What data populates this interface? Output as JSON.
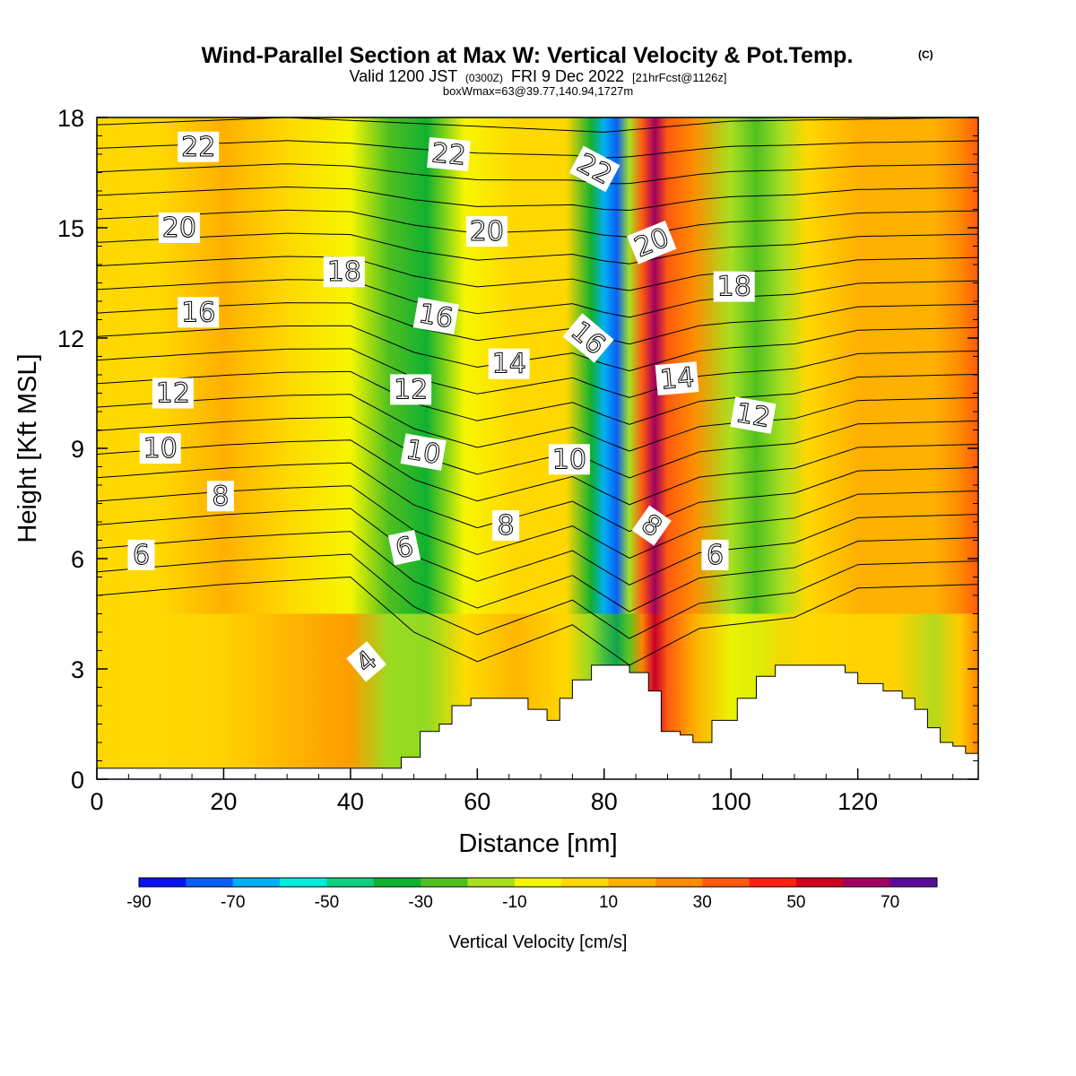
{
  "title": {
    "main": "Wind-Parallel Section at Max W: Vertical Velocity & Pot.Temp.",
    "main_mark": "(C)",
    "valid_prefix": "Valid 1200 JST",
    "valid_utc": "(0300Z)",
    "valid_date": "FRI 9 Dec 2022",
    "valid_fcst": "[21hrFcst@1126z]",
    "box_info": "boxWmax=63@39.77,140.94,1727m"
  },
  "chart_data": {
    "type": "heatmap",
    "xlabel": "Distance [nm]",
    "ylabel": "Height [Kft MSL]",
    "xlim": [
      0,
      139
    ],
    "ylim": [
      0,
      18
    ],
    "x_ticks": [
      0,
      20,
      40,
      60,
      80,
      100,
      120
    ],
    "y_ticks": [
      0,
      3,
      6,
      9,
      12,
      15,
      18
    ],
    "colorbar": {
      "label": "Vertical Velocity [cm/s]",
      "boundaries": [
        -90,
        -80,
        -70,
        -60,
        -50,
        -40,
        -30,
        -20,
        -10,
        0,
        10,
        20,
        30,
        40,
        50,
        60,
        70,
        80
      ],
      "tick_labels": [
        "-90",
        "-70",
        "-50",
        "-30",
        "-10",
        "10",
        "30",
        "50",
        "70"
      ],
      "colors": [
        "#0a12f0",
        "#0a60f6",
        "#00b0f4",
        "#00eee0",
        "#10d080",
        "#10b030",
        "#50c020",
        "#a8e020",
        "#f6f600",
        "#ffd800",
        "#ffb000",
        "#ff8c00",
        "#ff5a10",
        "#ff2010",
        "#d00020",
        "#a00060",
        "#5a0a9a"
      ]
    },
    "w_field": [
      {
        "x": 0,
        "w": 5,
        "w_low": 5
      },
      {
        "x": 10,
        "w": 8,
        "w_low": 3
      },
      {
        "x": 20,
        "w": 12,
        "w_low": 9
      },
      {
        "x": 30,
        "w": 5,
        "w_low": 12
      },
      {
        "x": 40,
        "w": -2,
        "w_low": 25
      },
      {
        "x": 46,
        "w": -22,
        "w_low": -12
      },
      {
        "x": 52,
        "w": -32,
        "w_low": -14
      },
      {
        "x": 58,
        "w": -8,
        "w_low": 4
      },
      {
        "x": 66,
        "w": 5,
        "w_low": 10
      },
      {
        "x": 74,
        "w": 4,
        "w_low": 8
      },
      {
        "x": 78,
        "w": -35,
        "w_low": -15
      },
      {
        "x": 80,
        "w": -62,
        "w_low": -25
      },
      {
        "x": 82,
        "w": -75,
        "w_low": -35
      },
      {
        "x": 84,
        "w": -20,
        "w_low": -30
      },
      {
        "x": 86,
        "w": 35,
        "w_low": 20
      },
      {
        "x": 88,
        "w": 63,
        "w_low": 55
      },
      {
        "x": 90,
        "w": 38,
        "w_low": 30
      },
      {
        "x": 94,
        "w": 22,
        "w_low": 14
      },
      {
        "x": 100,
        "w": -12,
        "w_low": -5
      },
      {
        "x": 104,
        "w": -30,
        "w_low": -8
      },
      {
        "x": 108,
        "w": -18,
        "w_low": 5
      },
      {
        "x": 112,
        "w": 6,
        "w_low": 8
      },
      {
        "x": 120,
        "w": 10,
        "w_low": 6
      },
      {
        "x": 126,
        "w": 18,
        "w_low": 5
      },
      {
        "x": 132,
        "w": 10,
        "w_low": -12
      },
      {
        "x": 136,
        "w": 20,
        "w_low": 8
      },
      {
        "x": 139,
        "w": 35,
        "w_low": 20
      }
    ],
    "theta_contours": {
      "interval": 1,
      "levels_range": [
        3,
        23
      ],
      "base_profile": [
        {
          "x": 0,
          "y": 5.0
        },
        {
          "x": 20,
          "y": 5.3
        },
        {
          "x": 40,
          "y": 5.5
        },
        {
          "x": 50,
          "y": 4.0
        },
        {
          "x": 60,
          "y": 3.2
        },
        {
          "x": 75,
          "y": 4.2
        },
        {
          "x": 84,
          "y": 3.1
        },
        {
          "x": 95,
          "y": 4.1
        },
        {
          "x": 110,
          "y": 4.4
        },
        {
          "x": 120,
          "y": 5.2
        },
        {
          "x": 139,
          "y": 5.3
        }
      ],
      "top_profile": [
        {
          "x": 0,
          "y": 17.8
        },
        {
          "x": 30,
          "y": 18.0
        },
        {
          "x": 55,
          "y": 17.8
        },
        {
          "x": 80,
          "y": 17.6
        },
        {
          "x": 100,
          "y": 17.9
        },
        {
          "x": 139,
          "y": 18.0
        }
      ]
    },
    "contour_labels": [
      {
        "text": "22",
        "x": 16,
        "y": 17.2,
        "angle": 0
      },
      {
        "text": "22",
        "x": 55.5,
        "y": 17.0,
        "angle": 5
      },
      {
        "text": "22",
        "x": 78.5,
        "y": 16.6,
        "angle": 28
      },
      {
        "text": "20",
        "x": 13,
        "y": 15.0,
        "angle": 0
      },
      {
        "text": "20",
        "x": 61.5,
        "y": 14.9,
        "angle": 0
      },
      {
        "text": "20",
        "x": 87.5,
        "y": 14.6,
        "angle": -22
      },
      {
        "text": "18",
        "x": 39,
        "y": 13.8,
        "angle": 0
      },
      {
        "text": "18",
        "x": 100.5,
        "y": 13.4,
        "angle": 0
      },
      {
        "text": "16",
        "x": 16,
        "y": 12.7,
        "angle": 0
      },
      {
        "text": "16",
        "x": 53.5,
        "y": 12.6,
        "angle": 10
      },
      {
        "text": "16",
        "x": 77.5,
        "y": 12.0,
        "angle": 40
      },
      {
        "text": "14",
        "x": 65,
        "y": 11.3,
        "angle": 0
      },
      {
        "text": "14",
        "x": 91.5,
        "y": 10.9,
        "angle": -5
      },
      {
        "text": "12",
        "x": 12,
        "y": 10.5,
        "angle": 0
      },
      {
        "text": "12",
        "x": 49.5,
        "y": 10.6,
        "angle": 0
      },
      {
        "text": "12",
        "x": 103.5,
        "y": 9.9,
        "angle": 10
      },
      {
        "text": "10",
        "x": 10,
        "y": 9.0,
        "angle": 0
      },
      {
        "text": "10",
        "x": 51.5,
        "y": 8.9,
        "angle": 10
      },
      {
        "text": "10",
        "x": 74.5,
        "y": 8.7,
        "angle": 0
      },
      {
        "text": "8",
        "x": 19.5,
        "y": 7.7,
        "angle": 0
      },
      {
        "text": "8",
        "x": 64.5,
        "y": 6.9,
        "angle": 0
      },
      {
        "text": "8",
        "x": 87.5,
        "y": 6.9,
        "angle": 35
      },
      {
        "text": "6",
        "x": 7,
        "y": 6.1,
        "angle": 0
      },
      {
        "text": "6",
        "x": 48.5,
        "y": 6.3,
        "angle": -12
      },
      {
        "text": "6",
        "x": 97.5,
        "y": 6.1,
        "angle": 0
      },
      {
        "text": "4",
        "x": 42.5,
        "y": 3.2,
        "angle": -40
      }
    ],
    "terrain_heights_kft": [
      {
        "x": 0,
        "h": 0.3
      },
      {
        "x": 47,
        "h": 0.3
      },
      {
        "x": 48,
        "h": 0.6
      },
      {
        "x": 51,
        "h": 1.3
      },
      {
        "x": 54,
        "h": 1.5
      },
      {
        "x": 56,
        "h": 2.0
      },
      {
        "x": 59,
        "h": 2.2
      },
      {
        "x": 63,
        "h": 2.2
      },
      {
        "x": 68,
        "h": 1.9
      },
      {
        "x": 71,
        "h": 1.6
      },
      {
        "x": 73,
        "h": 2.2
      },
      {
        "x": 75,
        "h": 2.7
      },
      {
        "x": 78,
        "h": 3.1
      },
      {
        "x": 82,
        "h": 3.1
      },
      {
        "x": 84,
        "h": 2.9
      },
      {
        "x": 87,
        "h": 2.4
      },
      {
        "x": 89,
        "h": 1.3
      },
      {
        "x": 92,
        "h": 1.2
      },
      {
        "x": 94,
        "h": 1.0
      },
      {
        "x": 97,
        "h": 1.6
      },
      {
        "x": 101,
        "h": 2.2
      },
      {
        "x": 104,
        "h": 2.8
      },
      {
        "x": 107,
        "h": 3.1
      },
      {
        "x": 115,
        "h": 3.1
      },
      {
        "x": 118,
        "h": 2.9
      },
      {
        "x": 120,
        "h": 2.6
      },
      {
        "x": 124,
        "h": 2.4
      },
      {
        "x": 127,
        "h": 2.2
      },
      {
        "x": 129,
        "h": 1.9
      },
      {
        "x": 131,
        "h": 1.4
      },
      {
        "x": 133,
        "h": 1.0
      },
      {
        "x": 135,
        "h": 0.9
      },
      {
        "x": 137,
        "h": 0.7
      },
      {
        "x": 139,
        "h": 0.7
      }
    ]
  }
}
